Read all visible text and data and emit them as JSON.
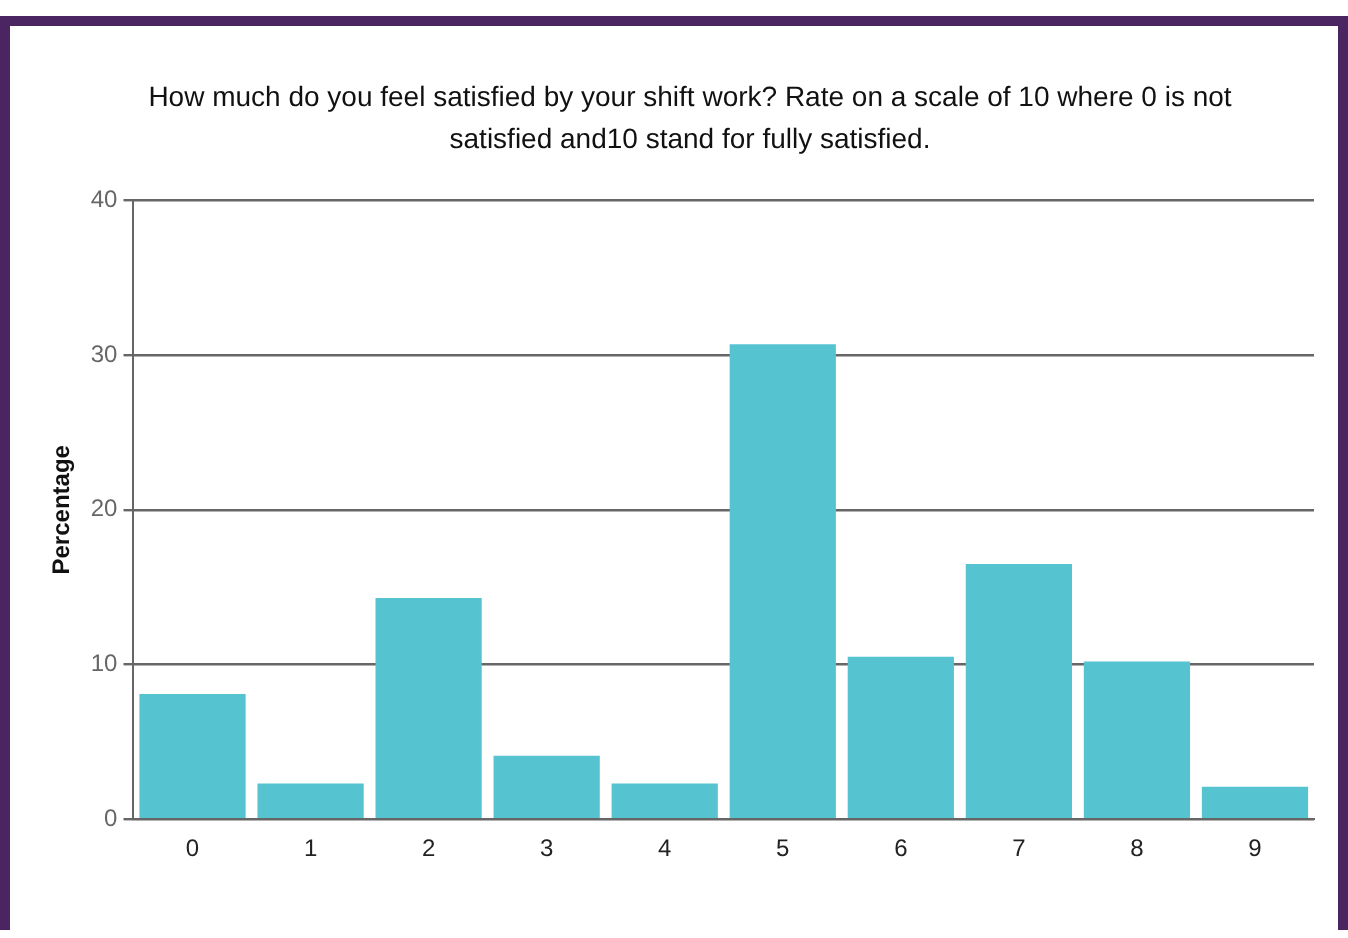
{
  "chart_data": {
    "type": "bar",
    "title": "How much do you feel satisfied by your shift work? Rate on a scale of 10 where 0 is not satisfied and10 stand for fully satisfied.",
    "ylabel": "Percentage",
    "categories": [
      "0",
      "1",
      "2",
      "3",
      "4",
      "5",
      "6",
      "7",
      "8",
      "9"
    ],
    "values": [
      8.1,
      2.3,
      14.3,
      4.1,
      2.3,
      30.7,
      10.5,
      16.5,
      10.2,
      2.1
    ],
    "color": "#55c4d0",
    "ylim": [
      0,
      40
    ],
    "yticks": [
      0,
      10,
      20,
      30,
      40
    ],
    "grid": "y",
    "legend": false
  }
}
